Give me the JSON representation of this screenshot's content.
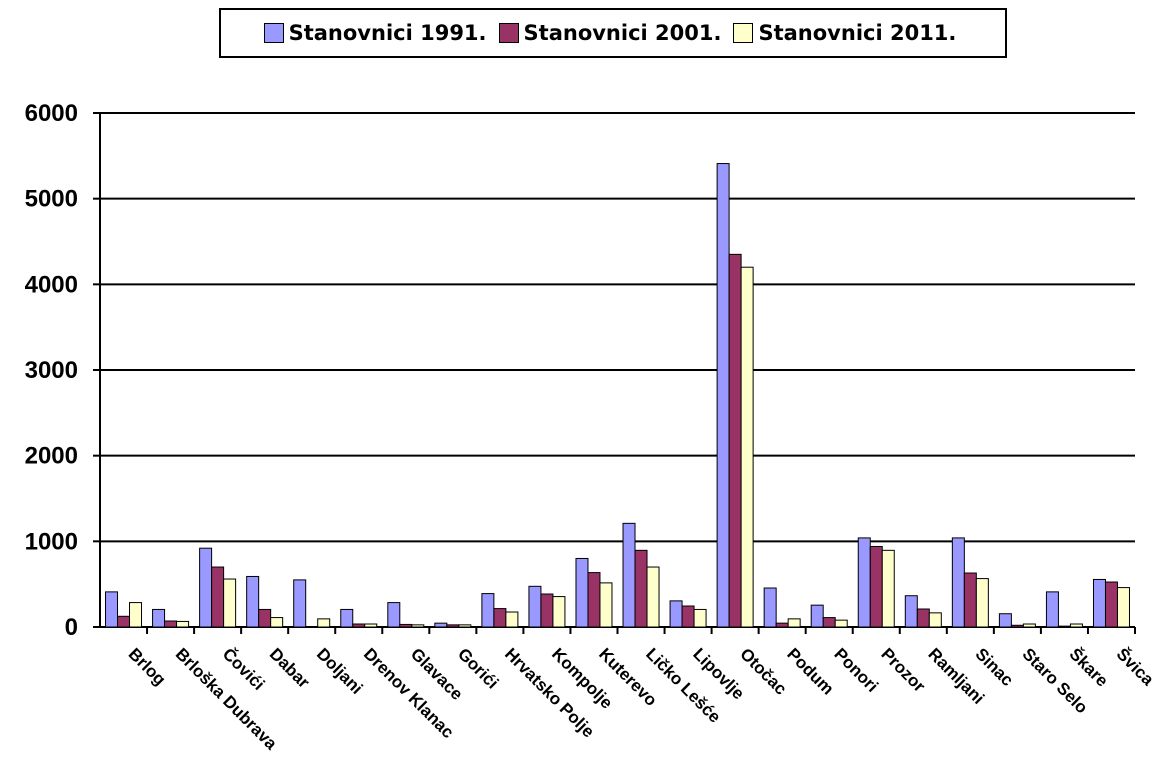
{
  "chart_data": {
    "type": "bar",
    "title": "",
    "xlabel": "",
    "ylabel": "",
    "ylim": [
      0,
      6000
    ],
    "yticks": [
      0,
      1000,
      2000,
      3000,
      4000,
      5000,
      6000
    ],
    "grid": true,
    "legend_position": "top",
    "categories": [
      "Brlog",
      "Brloška Dubrava",
      "Čovići",
      "Dabar",
      "Doljani",
      "Drenov Klanac",
      "Glavace",
      "Gorići",
      "Hrvatsko Polje",
      "Kompolje",
      "Kuterevo",
      "Ličko Lešće",
      "Lipovlje",
      "Otočac",
      "Podum",
      "Ponori",
      "Prozor",
      "Ramljani",
      "Sinac",
      "Staro Selo",
      "Škare",
      "Švica"
    ],
    "series": [
      {
        "name": "Stanovnici 1991.",
        "color": "#9999ff",
        "values": [
          410,
          205,
          920,
          590,
          550,
          205,
          285,
          45,
          390,
          475,
          800,
          1210,
          305,
          5410,
          455,
          255,
          1040,
          365,
          1040,
          155,
          410,
          555
        ]
      },
      {
        "name": "Stanovnici 2001.",
        "color": "#993366",
        "values": [
          125,
          70,
          700,
          205,
          5,
          35,
          30,
          25,
          215,
          385,
          635,
          895,
          245,
          4350,
          45,
          110,
          940,
          210,
          630,
          20,
          10,
          525
        ]
      },
      {
        "name": "Stanovnici 2011.",
        "color": "#ffffcc",
        "values": [
          285,
          65,
          560,
          110,
          95,
          35,
          25,
          25,
          175,
          355,
          515,
          700,
          205,
          4200,
          95,
          80,
          895,
          165,
          565,
          35,
          35,
          460
        ]
      }
    ]
  }
}
